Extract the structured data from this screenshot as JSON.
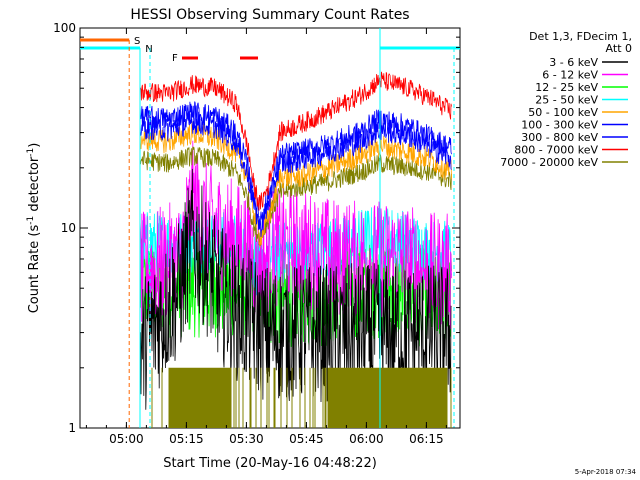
{
  "chart_data": {
    "type": "line",
    "title": "HESSI Observing Summary Count Rates",
    "xlabel": "Start Time (20-May-16 04:48:22)",
    "ylabel_main": "Count Rate (s",
    "ylabel_sup1": "-1",
    "ylabel_mid": " detector",
    "ylabel_sup2": "-1",
    "ylabel_end": ")",
    "y_scale": "log",
    "ylim": [
      1,
      100
    ],
    "xlim_minutes_after_start": [
      0,
      95
    ],
    "x_ticks": [
      {
        "label": "05:00",
        "minutes": 11.6
      },
      {
        "label": "05:15",
        "minutes": 26.6
      },
      {
        "label": "05:30",
        "minutes": 41.6
      },
      {
        "label": "05:45",
        "minutes": 56.6
      },
      {
        "label": "06:00",
        "minutes": 71.6
      },
      {
        "label": "06:15",
        "minutes": 86.6
      }
    ],
    "y_ticks": [
      {
        "label": "1",
        "value": 1
      },
      {
        "label": "10",
        "value": 10
      },
      {
        "label": "100",
        "value": 100
      }
    ],
    "legend_header_line1": "Det 1,3, FDecim 1,",
    "legend_header_line2": "Att 0",
    "legend_position": "right",
    "series": [
      {
        "name": "3 - 6 keV",
        "color": "#000000",
        "noise": 0.35,
        "profile": [
          [
            15,
            2.5
          ],
          [
            20,
            3.5
          ],
          [
            25,
            5
          ],
          [
            28,
            9
          ],
          [
            31,
            7
          ],
          [
            34,
            5
          ],
          [
            38,
            4
          ],
          [
            42,
            3.5
          ],
          [
            46,
            3
          ],
          [
            55,
            3
          ],
          [
            65,
            3
          ],
          [
            72,
            3
          ],
          [
            80,
            3
          ],
          [
            88,
            3
          ],
          [
            93,
            3
          ]
        ]
      },
      {
        "name": "6 - 12 keV",
        "color": "#ff00ff",
        "noise": 0.3,
        "profile": [
          [
            15,
            6
          ],
          [
            25,
            7
          ],
          [
            28,
            14
          ],
          [
            31,
            11
          ],
          [
            34,
            10
          ],
          [
            38,
            9
          ],
          [
            42,
            8
          ],
          [
            45,
            6
          ],
          [
            48,
            8
          ],
          [
            55,
            8
          ],
          [
            65,
            7
          ],
          [
            72,
            7
          ],
          [
            80,
            7
          ],
          [
            88,
            6
          ],
          [
            93,
            6
          ]
        ]
      },
      {
        "name": "12 - 25 keV",
        "color": "#00ff00",
        "noise": 0.25,
        "profile": [
          [
            15,
            5
          ],
          [
            25,
            5
          ],
          [
            35,
            5
          ],
          [
            42,
            5
          ],
          [
            48,
            4.5
          ],
          [
            55,
            4.5
          ],
          [
            65,
            4.5
          ],
          [
            75,
            5
          ],
          [
            85,
            4.5
          ],
          [
            93,
            4.5
          ]
        ]
      },
      {
        "name": "25 - 50 keV",
        "color": "#00ffff",
        "noise": 0.16,
        "profile": [
          [
            15,
            8.5
          ],
          [
            25,
            8.5
          ],
          [
            35,
            8.5
          ],
          [
            42,
            8
          ],
          [
            45,
            6
          ],
          [
            48,
            7.5
          ],
          [
            55,
            7.5
          ],
          [
            65,
            8
          ],
          [
            72,
            9
          ],
          [
            78,
            9
          ],
          [
            85,
            8
          ],
          [
            93,
            7.5
          ]
        ]
      },
      {
        "name": "50 - 100 keV",
        "color": "#ffa500",
        "noise": 0.06,
        "profile": [
          [
            15,
            28
          ],
          [
            22,
            27
          ],
          [
            28,
            30
          ],
          [
            34,
            28
          ],
          [
            39,
            24
          ],
          [
            42,
            18
          ],
          [
            43.5,
            12
          ],
          [
            45,
            9
          ],
          [
            47,
            11
          ],
          [
            50,
            18
          ],
          [
            55,
            18
          ],
          [
            62,
            20
          ],
          [
            70,
            23
          ],
          [
            75,
            26
          ],
          [
            82,
            24
          ],
          [
            88,
            22
          ],
          [
            93,
            19
          ]
        ]
      },
      {
        "name": "100 - 300 keV",
        "color": "#0000ff",
        "noise": 0.06,
        "profile": [
          [
            15,
            36
          ],
          [
            22,
            35
          ],
          [
            28,
            38
          ],
          [
            34,
            36
          ],
          [
            39,
            30
          ],
          [
            42,
            20
          ],
          [
            43.5,
            14
          ],
          [
            45,
            11
          ],
          [
            47,
            14
          ],
          [
            50,
            23
          ],
          [
            55,
            24
          ],
          [
            62,
            26
          ],
          [
            70,
            30
          ],
          [
            75,
            35
          ],
          [
            82,
            32
          ],
          [
            88,
            28
          ],
          [
            93,
            25
          ]
        ]
      },
      {
        "name": "300 - 800 keV",
        "color": "#0000ff",
        "noise": 0.06,
        "profile": [
          [
            15,
            32
          ],
          [
            22,
            31
          ],
          [
            28,
            34
          ],
          [
            34,
            32
          ],
          [
            39,
            27
          ],
          [
            42,
            18
          ],
          [
            43.5,
            13
          ],
          [
            45,
            10
          ],
          [
            47,
            13
          ],
          [
            50,
            21
          ],
          [
            55,
            22
          ],
          [
            62,
            24
          ],
          [
            70,
            27
          ],
          [
            75,
            31
          ],
          [
            82,
            29
          ],
          [
            88,
            25
          ],
          [
            93,
            22
          ]
        ]
      },
      {
        "name": "800 - 7000 keV",
        "color": "#ff0000",
        "noise": 0.05,
        "profile": [
          [
            15,
            48
          ],
          [
            22,
            47
          ],
          [
            28,
            52
          ],
          [
            34,
            50
          ],
          [
            39,
            42
          ],
          [
            42,
            25
          ],
          [
            43.5,
            16
          ],
          [
            45,
            13
          ],
          [
            47,
            16
          ],
          [
            50,
            30
          ],
          [
            55,
            33
          ],
          [
            62,
            38
          ],
          [
            70,
            46
          ],
          [
            75,
            55
          ],
          [
            82,
            50
          ],
          [
            88,
            44
          ],
          [
            93,
            38
          ]
        ]
      },
      {
        "name": "7000 - 20000 keV",
        "color": "#808000",
        "noise": 0.05,
        "profile": [
          [
            15,
            22
          ],
          [
            22,
            21
          ],
          [
            28,
            23
          ],
          [
            34,
            22
          ],
          [
            39,
            19
          ],
          [
            42,
            14
          ],
          [
            43.5,
            10
          ],
          [
            45,
            9
          ],
          [
            47,
            11
          ],
          [
            50,
            15
          ],
          [
            55,
            16
          ],
          [
            62,
            17
          ],
          [
            70,
            19
          ],
          [
            75,
            21
          ],
          [
            82,
            20
          ],
          [
            88,
            19
          ],
          [
            93,
            17
          ]
        ]
      }
    ],
    "flags": [
      {
        "label": "S",
        "color": "#ff6600"
      },
      {
        "label": "N",
        "color": "#00ffff"
      },
      {
        "label": "F",
        "color": "#ff0000"
      }
    ]
  },
  "footer_date": "5-Apr-2018 07:34"
}
